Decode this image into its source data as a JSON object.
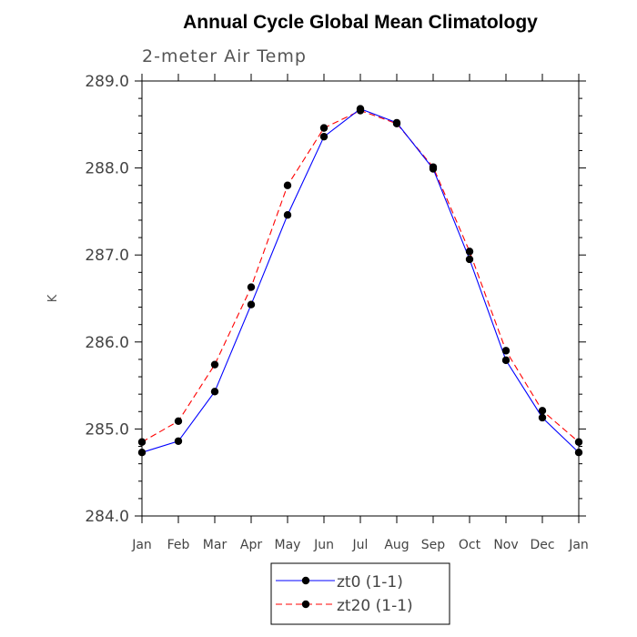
{
  "chart_data": {
    "type": "line",
    "title": "Annual Cycle Global Mean Climatology",
    "subtitle": "2-meter Air Temp",
    "xlabel": "",
    "ylabel": "K",
    "ylim": [
      284.0,
      289.0
    ],
    "yticks": [
      "284.0",
      "285.0",
      "286.0",
      "287.0",
      "288.0",
      "289.0"
    ],
    "categories": [
      "Jan",
      "Feb",
      "Mar",
      "Apr",
      "May",
      "Jun",
      "Jul",
      "Aug",
      "Sep",
      "Oct",
      "Nov",
      "Dec",
      "Jan"
    ],
    "grid": false,
    "legend_position": "bottom-center",
    "series": [
      {
        "name": "zt0 (1-1)",
        "color": "#0000ff",
        "dash": "solid",
        "marker": "filled-circle",
        "values": [
          284.73,
          284.86,
          285.43,
          286.43,
          287.46,
          288.36,
          288.68,
          288.52,
          287.99,
          286.95,
          285.79,
          285.13,
          284.73
        ]
      },
      {
        "name": "zt20 (1-1)",
        "color": "#ff0000",
        "dash": "dashed",
        "marker": "filled-circle",
        "values": [
          284.85,
          285.09,
          285.74,
          286.63,
          287.8,
          288.46,
          288.66,
          288.51,
          288.01,
          287.04,
          285.9,
          285.21,
          284.85
        ]
      }
    ]
  }
}
